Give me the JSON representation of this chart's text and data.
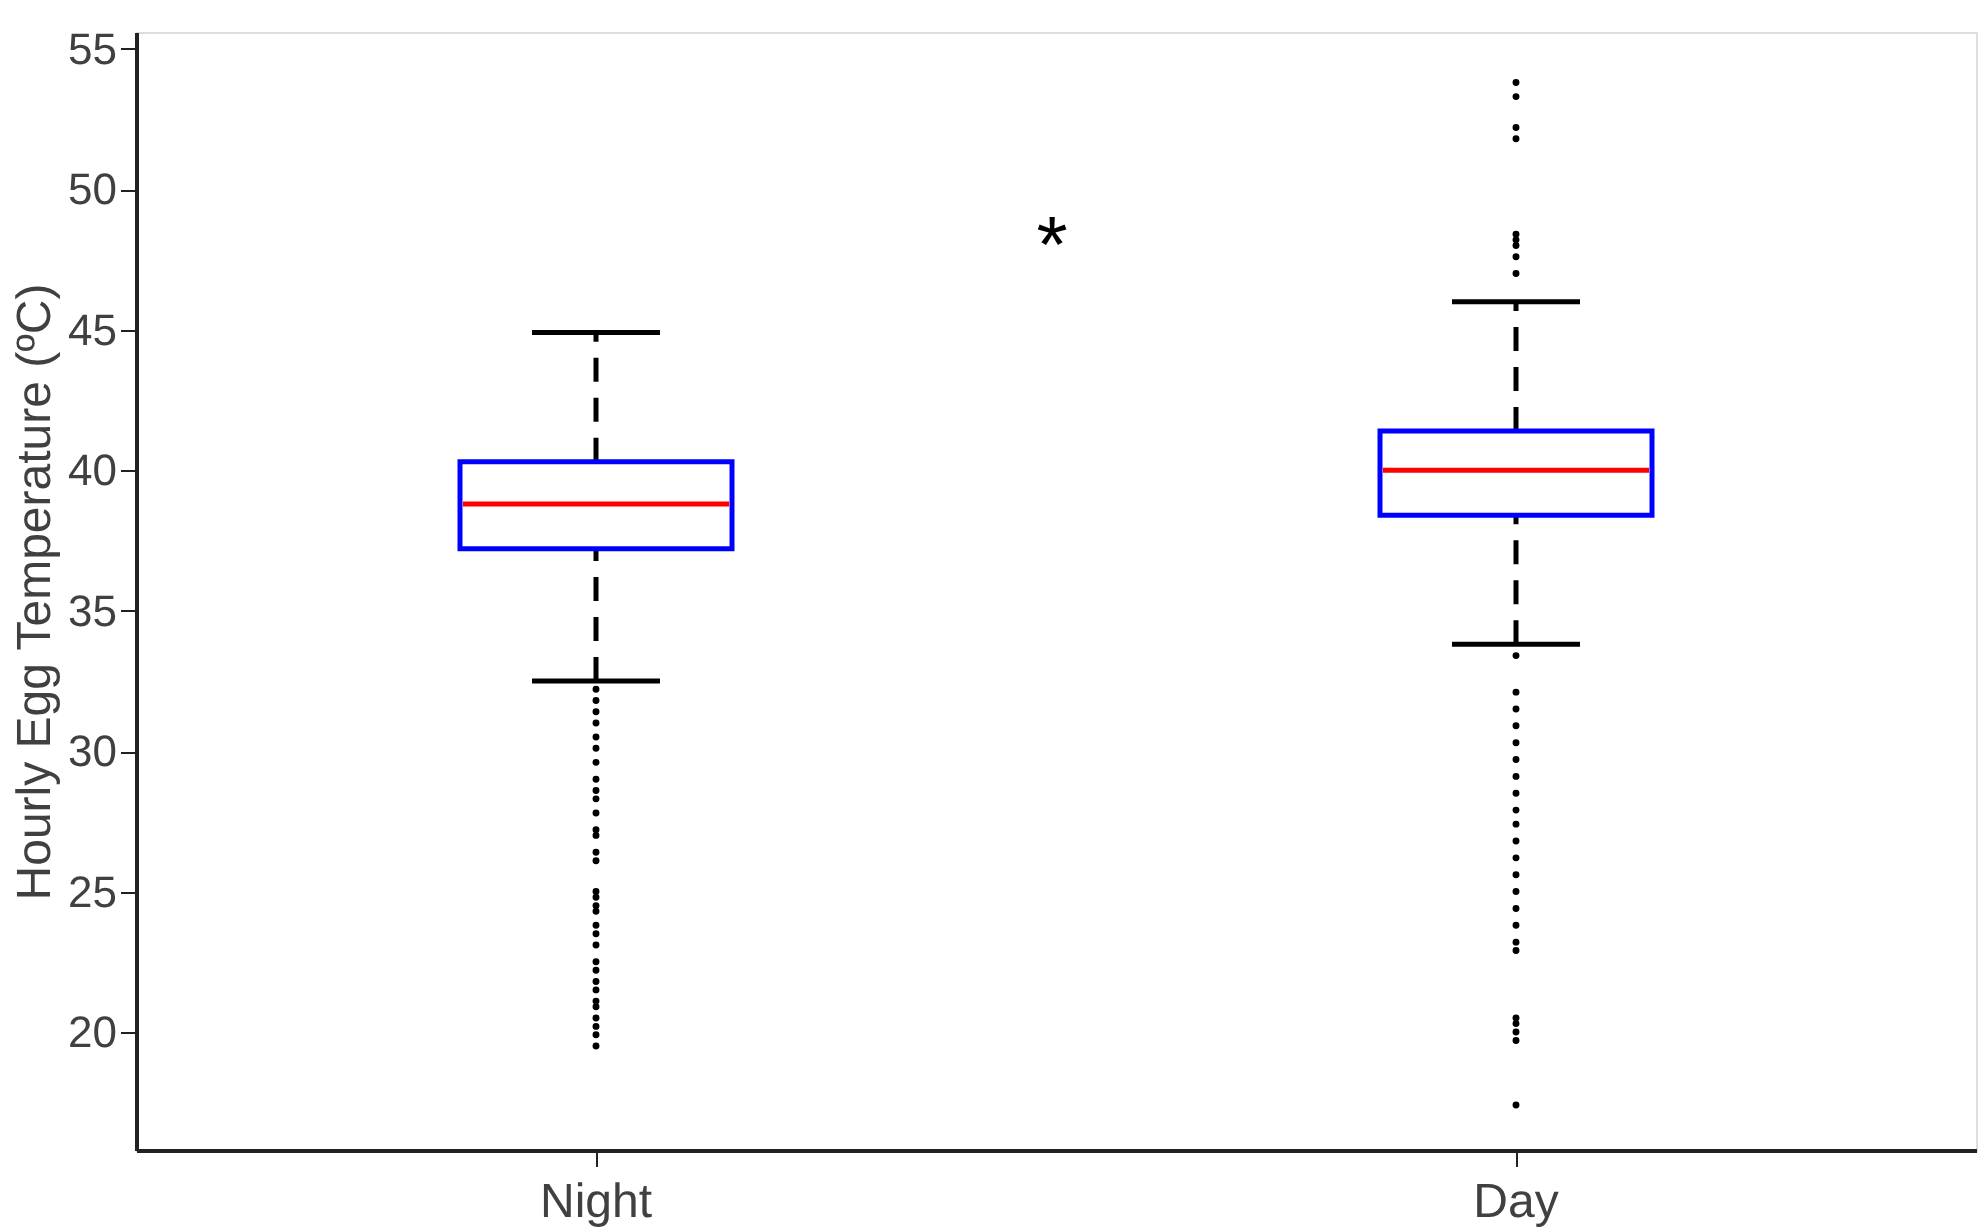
{
  "chart_data": {
    "type": "box",
    "ylabel": "Hourly Egg Temperature (ºC)",
    "categories": [
      "Night",
      "Day"
    ],
    "boxes": [
      {
        "low": 32.5,
        "q1": 37.2,
        "median": 38.8,
        "q3": 40.3,
        "high": 44.9,
        "outliers": [
          32.2,
          31.8,
          31.4,
          31.0,
          30.5,
          30.1,
          29.6,
          29.0,
          28.6,
          28.3,
          27.8,
          27.2,
          27.0,
          26.4,
          26.1,
          25.0,
          24.8,
          24.5,
          24.3,
          23.8,
          23.5,
          23.1,
          22.5,
          22.2,
          21.8,
          21.5,
          21.1,
          20.9,
          20.5,
          20.2,
          19.9,
          19.5
        ]
      },
      {
        "low": 33.8,
        "q1": 38.4,
        "median": 40.0,
        "q3": 41.4,
        "high": 46.0,
        "outliers": [
          53.8,
          53.3,
          52.2,
          51.8,
          48.4,
          48.2,
          48.0,
          47.6,
          47.0,
          33.4,
          32.1,
          31.5,
          30.9,
          30.3,
          29.7,
          29.1,
          28.5,
          27.9,
          27.4,
          26.8,
          26.2,
          25.6,
          25.0,
          24.4,
          23.8,
          23.2,
          22.9,
          20.5,
          20.3,
          20.0,
          19.7,
          17.4
        ]
      }
    ],
    "ylim": [
      15.8,
      55.6
    ],
    "yticks": [
      20,
      25,
      30,
      35,
      40,
      45,
      50,
      55
    ],
    "grid": false,
    "annotations": [
      "*"
    ]
  }
}
